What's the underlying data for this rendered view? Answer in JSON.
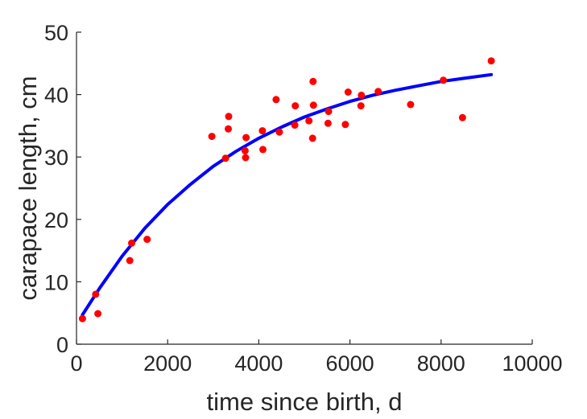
{
  "chart_data": {
    "type": "scatter",
    "title": "",
    "xlabel": "time since birth, d",
    "ylabel": "carapace length, cm",
    "xlim": [
      0,
      10000
    ],
    "ylim": [
      0,
      50
    ],
    "x_ticks": [
      "0",
      "2000",
      "4000",
      "6000",
      "8000",
      "10000"
    ],
    "y_ticks": [
      "0",
      "10",
      "20",
      "30",
      "40",
      "50"
    ],
    "grid": false,
    "box": false,
    "colors": {
      "points": "#ff0000",
      "curve": "#0000ff",
      "axes": "#262626"
    },
    "series": [
      {
        "type": "scatter",
        "x": [
          130,
          420,
          470,
          1170,
          1210,
          1550,
          2970,
          3270,
          3330,
          3340,
          3700,
          3710,
          3720,
          4080,
          4090,
          4380,
          4450,
          4790,
          4800,
          5100,
          5180,
          5190,
          5200,
          5520,
          5530,
          5900,
          5960,
          6240,
          6250,
          6620,
          7330,
          8050,
          8470,
          9100
        ],
        "y": [
          4.1,
          8.0,
          4.9,
          13.4,
          16.2,
          16.8,
          33.3,
          29.8,
          34.5,
          36.5,
          31.0,
          29.9,
          33.1,
          34.2,
          31.2,
          39.2,
          34.0,
          35.1,
          38.2,
          35.8,
          33.0,
          42.1,
          38.3,
          35.4,
          37.3,
          35.2,
          40.4,
          38.2,
          39.9,
          40.5,
          38.4,
          42.3,
          36.3,
          45.4
        ]
      },
      {
        "type": "line",
        "x": [
          130,
          500,
          1000,
          1500,
          2000,
          2500,
          3000,
          3500,
          4000,
          4500,
          5000,
          5500,
          6000,
          6500,
          7000,
          7500,
          8000,
          8500,
          9100
        ],
        "y": [
          4.7,
          8.9,
          14.1,
          18.6,
          22.4,
          25.6,
          28.5,
          30.9,
          33.0,
          34.8,
          36.4,
          37.7,
          38.9,
          39.9,
          40.7,
          41.4,
          42.1,
          42.6,
          43.2
        ]
      }
    ]
  }
}
